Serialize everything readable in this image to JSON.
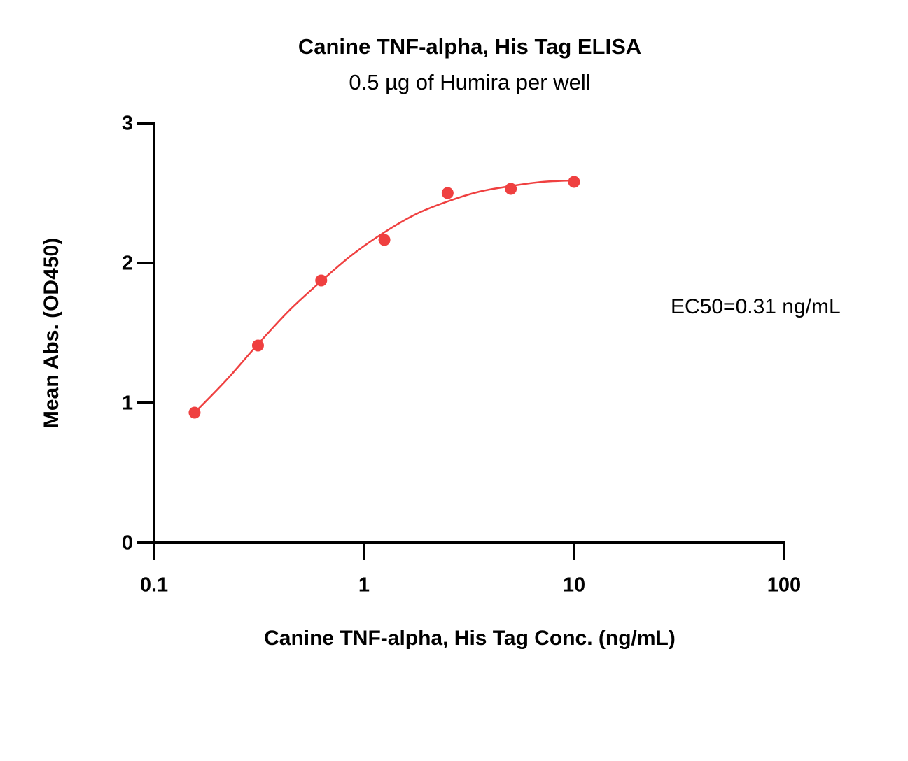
{
  "chart_data": {
    "type": "scatter",
    "title": "Canine TNF-alpha, His Tag ELISA",
    "subtitle": "0.5 µg of Humira per well",
    "x_label": "Canine TNF-alpha, His Tag Conc. (ng/mL)",
    "y_label": "Mean Abs. (OD450)",
    "annotation": "EC50=0.31 ng/mL",
    "x_scale": "log",
    "color": "#ef4040",
    "x": [
      0.156,
      0.3125,
      0.625,
      1.25,
      2.5,
      5,
      10
    ],
    "values": [
      0.93,
      1.41,
      1.875,
      2.165,
      2.5,
      2.53,
      2.58
    ],
    "curve": {
      "x": [
        0.156,
        0.22,
        0.3125,
        0.44,
        0.625,
        0.88,
        1.25,
        1.77,
        2.5,
        3.54,
        5,
        7.07,
        10
      ],
      "values": [
        0.93,
        1.16,
        1.42,
        1.66,
        1.87,
        2.06,
        2.22,
        2.35,
        2.44,
        2.51,
        2.55,
        2.58,
        2.59
      ]
    },
    "xlim": [
      0.1,
      100
    ],
    "xticks": [
      0.1,
      1,
      10,
      100
    ],
    "ylim": [
      0,
      3
    ],
    "yticks": [
      0,
      1,
      2,
      3
    ]
  }
}
